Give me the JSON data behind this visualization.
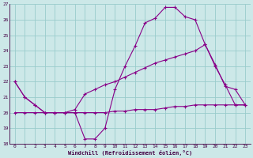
{
  "xlabel": "Windchill (Refroidissement éolien,°C)",
  "background_color": "#cce8e8",
  "grid_color": "#99cccc",
  "line_color": "#880088",
  "xlim": [
    -0.5,
    23.5
  ],
  "ylim": [
    18,
    27
  ],
  "yticks": [
    18,
    19,
    20,
    21,
    22,
    23,
    24,
    25,
    26,
    27
  ],
  "xticks": [
    0,
    1,
    2,
    3,
    4,
    5,
    6,
    7,
    8,
    9,
    10,
    11,
    12,
    13,
    14,
    15,
    16,
    17,
    18,
    19,
    20,
    21,
    22,
    23
  ],
  "series1_x": [
    0,
    1,
    2,
    3,
    4,
    5,
    6,
    7,
    8,
    9,
    10,
    11,
    12,
    13,
    14,
    15,
    16,
    17,
    18,
    19,
    20,
    21,
    22,
    23
  ],
  "series1_y": [
    22.0,
    21.0,
    20.5,
    20.0,
    20.0,
    20.0,
    20.0,
    18.3,
    18.3,
    19.0,
    21.5,
    23.0,
    24.3,
    25.8,
    26.1,
    26.8,
    26.8,
    26.2,
    26.0,
    24.4,
    23.0,
    21.8,
    20.5,
    20.5
  ],
  "series2_x": [
    0,
    1,
    2,
    3,
    4,
    5,
    6,
    7,
    8,
    9,
    10,
    11,
    12,
    13,
    14,
    15,
    16,
    17,
    18,
    19,
    20,
    21,
    22,
    23
  ],
  "series2_y": [
    20.0,
    20.0,
    20.0,
    20.0,
    20.0,
    20.0,
    20.0,
    20.0,
    20.0,
    20.0,
    20.1,
    20.1,
    20.2,
    20.2,
    20.2,
    20.3,
    20.4,
    20.4,
    20.5,
    20.5,
    20.5,
    20.5,
    20.5,
    20.5
  ],
  "series3_x": [
    0,
    1,
    2,
    3,
    4,
    5,
    6,
    7,
    8,
    9,
    10,
    11,
    12,
    13,
    14,
    15,
    16,
    17,
    18,
    19,
    20,
    21,
    22,
    23
  ],
  "series3_y": [
    22.0,
    21.0,
    20.5,
    20.0,
    20.0,
    20.0,
    20.2,
    21.2,
    21.5,
    21.8,
    22.0,
    22.3,
    22.6,
    22.9,
    23.2,
    23.4,
    23.6,
    23.8,
    24.0,
    24.4,
    23.1,
    21.7,
    21.5,
    20.5
  ]
}
